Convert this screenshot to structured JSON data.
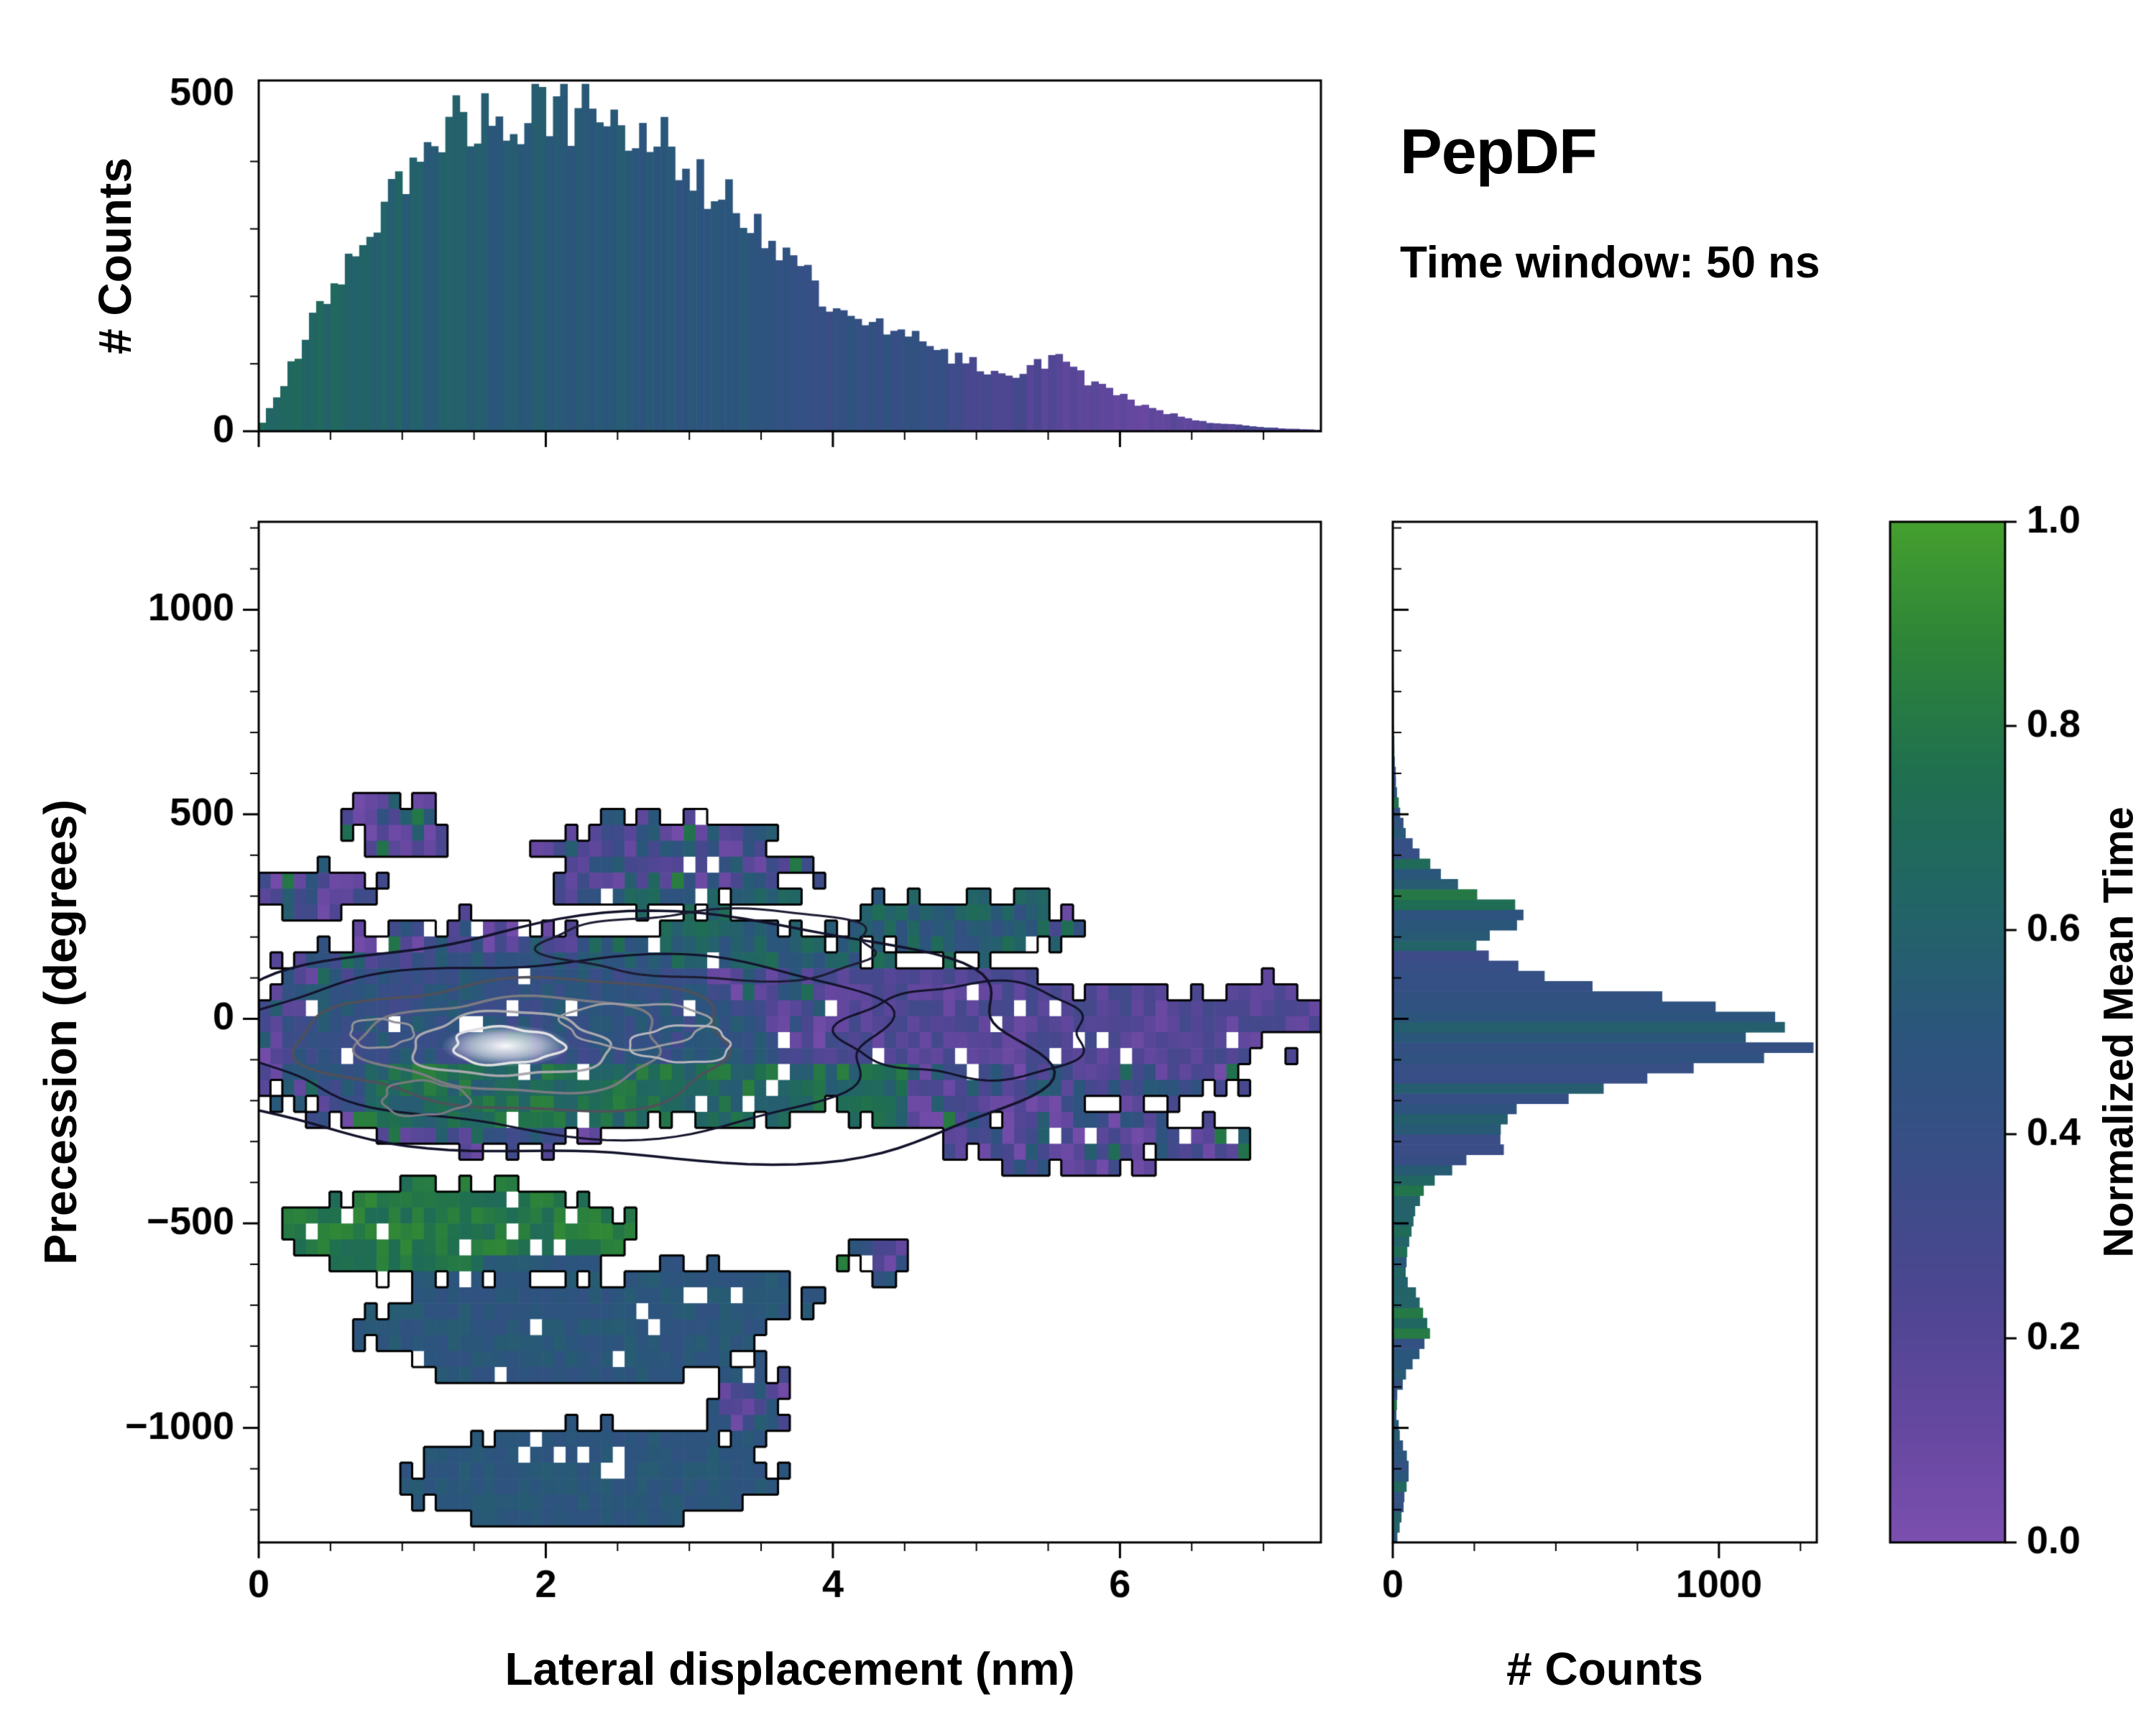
{
  "title": {
    "name": "PepDF",
    "subtitle": "Time window: 50 ns"
  },
  "axes": {
    "top_hist": {
      "ylabel": "# Counts",
      "ylim": [
        0,
        520
      ],
      "yticks": [
        0,
        500
      ],
      "yminor": 100,
      "xminor": 0.5
    },
    "main": {
      "xlabel": "Lateral displacement (nm)",
      "ylabel": "Precession (degrees)",
      "xlim": [
        0,
        7.4
      ],
      "ylim": [
        -1280,
        1215
      ],
      "xticks": [
        0,
        2,
        4,
        6
      ],
      "xminor": 0.5,
      "yticks": [
        -1000,
        -500,
        0,
        500,
        1000
      ],
      "yminor": 100
    },
    "right_hist": {
      "xlabel": "# Counts",
      "xlim": [
        0,
        1300
      ],
      "xticks": [
        0,
        1000
      ],
      "xminor": 250,
      "ymajor": 500,
      "yminor": 100
    },
    "colorbar": {
      "label": "Normalized Mean Time",
      "ticks": [
        0,
        0.2,
        0.4,
        0.6,
        0.8,
        1.0
      ],
      "lim": [
        0,
        1
      ]
    }
  },
  "colormap": [
    [
      0,
      "#7b4fae"
    ],
    [
      0.12,
      "#64479f"
    ],
    [
      0.25,
      "#4b4690"
    ],
    [
      0.38,
      "#384e86"
    ],
    [
      0.5,
      "#2b557c"
    ],
    [
      0.62,
      "#226467"
    ],
    [
      0.75,
      "#1f6f50"
    ],
    [
      0.88,
      "#2d8438"
    ],
    [
      1,
      "#45a02f"
    ]
  ],
  "render": {
    "seed": 20240617
  },
  "chart_data": [
    {
      "panel": "top",
      "type": "bar",
      "title": "Distribution of lateral displacement, colored by normalized mean time",
      "bins": 148,
      "xlim": [
        0,
        7.4
      ],
      "value_noise": 0.22,
      "color_noise": 0.1,
      "envelope": [
        [
          0,
          4
        ],
        [
          0.1,
          40
        ],
        [
          0.2,
          85
        ],
        [
          0.3,
          125
        ],
        [
          0.35,
          150
        ],
        [
          0.45,
          185
        ],
        [
          0.55,
          215
        ],
        [
          0.65,
          245
        ],
        [
          0.75,
          280
        ],
        [
          0.85,
          320
        ],
        [
          0.95,
          355
        ],
        [
          1.05,
          385
        ],
        [
          1.15,
          420
        ],
        [
          1.25,
          445
        ],
        [
          1.35,
          460
        ],
        [
          1.45,
          440
        ],
        [
          1.55,
          455
        ],
        [
          1.65,
          470
        ],
        [
          1.75,
          455
        ],
        [
          1.85,
          480
        ],
        [
          1.95,
          465
        ],
        [
          2.05,
          480
        ],
        [
          2.15,
          470
        ],
        [
          2.25,
          488
        ],
        [
          2.35,
          478
        ],
        [
          2.45,
          485
        ],
        [
          2.55,
          470
        ],
        [
          2.65,
          450
        ],
        [
          2.75,
          435
        ],
        [
          2.85,
          415
        ],
        [
          2.95,
          395
        ],
        [
          3.05,
          375
        ],
        [
          3.15,
          355
        ],
        [
          3.25,
          345
        ],
        [
          3.35,
          335
        ],
        [
          3.45,
          315
        ],
        [
          3.55,
          285
        ],
        [
          3.65,
          265
        ],
        [
          3.75,
          245
        ],
        [
          3.85,
          215
        ],
        [
          3.95,
          185
        ],
        [
          4.05,
          170
        ],
        [
          4.15,
          162
        ],
        [
          4.25,
          168
        ],
        [
          4.35,
          162
        ],
        [
          4.45,
          152
        ],
        [
          4.55,
          138
        ],
        [
          4.65,
          125
        ],
        [
          4.75,
          115
        ],
        [
          4.85,
          108
        ],
        [
          4.95,
          102
        ],
        [
          5.1,
          92
        ],
        [
          5.3,
          88
        ],
        [
          5.45,
          100
        ],
        [
          5.55,
          108
        ],
        [
          5.65,
          95
        ],
        [
          5.8,
          72
        ],
        [
          5.95,
          58
        ],
        [
          6.1,
          42
        ],
        [
          6.25,
          32
        ],
        [
          6.4,
          24
        ],
        [
          6.55,
          16
        ],
        [
          6.7,
          11
        ],
        [
          6.9,
          8
        ],
        [
          7.1,
          5
        ],
        [
          7.25,
          3
        ],
        [
          7.4,
          2
        ]
      ],
      "color_envelope": [
        [
          0,
          0.68
        ],
        [
          0.6,
          0.62
        ],
        [
          1.2,
          0.57
        ],
        [
          1.8,
          0.54
        ],
        [
          2.4,
          0.52
        ],
        [
          3.0,
          0.5
        ],
        [
          3.6,
          0.47
        ],
        [
          3.95,
          0.4
        ],
        [
          4.2,
          0.44
        ],
        [
          4.6,
          0.4
        ],
        [
          5.0,
          0.3
        ],
        [
          5.4,
          0.22
        ],
        [
          5.8,
          0.16
        ],
        [
          6.2,
          0.14
        ],
        [
          6.6,
          0.18
        ],
        [
          7.0,
          0.28
        ],
        [
          7.4,
          0.22
        ]
      ]
    },
    {
      "panel": "main",
      "type": "heatmap",
      "title": "2D histogram of precession vs lateral displacement, colored by normalized mean time, with density contours",
      "grid": {
        "nx": 90,
        "ny": 64
      },
      "fill_threshold": 0.27,
      "threshold_noise": 0.25,
      "white_hole_fraction": 0.045,
      "fill_blobs": [
        {
          "cx": 1.6,
          "cy": -40,
          "rx": 2.05,
          "ry": 330,
          "d": 1.0
        },
        {
          "cx": 3.2,
          "cy": -10,
          "rx": 1.7,
          "ry": 300,
          "d": 0.92
        },
        {
          "cx": 4.8,
          "cy": -70,
          "rx": 1.5,
          "ry": 255,
          "d": 0.8
        },
        {
          "cx": 6.1,
          "cy": -60,
          "rx": 1.3,
          "ry": 185,
          "d": 0.66
        },
        {
          "cx": 6.95,
          "cy": 20,
          "rx": 0.6,
          "ry": 110,
          "d": 0.52
        },
        {
          "cx": 2.9,
          "cy": 380,
          "rx": 1.35,
          "ry": 165,
          "d": 0.55
        },
        {
          "cx": 0.95,
          "cy": 470,
          "rx": 0.55,
          "ry": 115,
          "d": 0.45
        },
        {
          "cx": 0.4,
          "cy": 300,
          "rx": 0.8,
          "ry": 95,
          "d": 0.5
        },
        {
          "cx": 4.9,
          "cy": 230,
          "rx": 1.2,
          "ry": 110,
          "d": 0.5
        },
        {
          "cx": 1.4,
          "cy": -520,
          "rx": 1.45,
          "ry": 150,
          "d": 0.85
        },
        {
          "cx": 2.1,
          "cy": -765,
          "rx": 1.6,
          "ry": 155,
          "d": 0.9
        },
        {
          "cx": 3.1,
          "cy": -690,
          "rx": 0.95,
          "ry": 120,
          "d": 0.6
        },
        {
          "cx": 2.3,
          "cy": -1120,
          "rx": 1.55,
          "ry": 150,
          "d": 0.88
        },
        {
          "cx": 3.4,
          "cy": -940,
          "rx": 0.45,
          "ry": 230,
          "d": 0.45
        },
        {
          "cx": 5.6,
          "cy": -295,
          "rx": 1.15,
          "ry": 115,
          "d": 0.55
        },
        {
          "cx": 6.5,
          "cy": -300,
          "rx": 0.7,
          "ry": 80,
          "d": 0.45
        },
        {
          "cx": 4.3,
          "cy": -585,
          "rx": 0.35,
          "ry": 80,
          "d": 0.4
        }
      ],
      "color_rules": [
        {
          "shape": "ellipse",
          "cx": 2.1,
          "cy": -765,
          "rx": 1.75,
          "ry": 175,
          "t": 0.5,
          "spread": 0.06
        },
        {
          "shape": "ellipse",
          "cx": 3.1,
          "cy": -690,
          "rx": 1.05,
          "ry": 135,
          "t": 0.5,
          "spread": 0.06
        },
        {
          "shape": "ellipse",
          "cx": 2.3,
          "cy": -1120,
          "rx": 1.7,
          "ry": 165,
          "t": 0.5,
          "spread": 0.05
        },
        {
          "shape": "ellipse",
          "cx": 1.4,
          "cy": -520,
          "rx": 1.5,
          "ry": 160,
          "t": 0.8,
          "spread": 0.1
        },
        {
          "shape": "rect",
          "x0": 0.7,
          "x1": 4.5,
          "y0": -260,
          "y1": -125,
          "t": 0.7,
          "spread": 0.16
        },
        {
          "shape": "rect",
          "x0": 2.2,
          "x1": 5.5,
          "y0": 140,
          "y1": 330,
          "t": 0.58,
          "spread": 0.15
        },
        {
          "shape": "ellipse",
          "cx": 1.9,
          "cy": -60,
          "rx": 1.7,
          "ry": 230,
          "t": 0.44,
          "spread": 0.13
        },
        {
          "shape": "rect",
          "x0": 4.0,
          "x1": 7.4,
          "y0": -120,
          "y1": 120,
          "t": 0.2,
          "spread": 0.12
        }
      ],
      "default_color": {
        "t": 0.2,
        "spread": 0.16,
        "blue_chance": 0.26,
        "green_chance": 0.07
      },
      "contours": {
        "dark": [
          {
            "cx": 2.5,
            "cy": -60,
            "rx": 3.05,
            "ry": 295,
            "color": "#13132b",
            "lw": 3.5
          },
          {
            "cx": 2.2,
            "cy": -60,
            "rx": 2.25,
            "ry": 215,
            "color": "#13132b",
            "lw": 3
          },
          {
            "cx": 4.95,
            "cy": -30,
            "rx": 0.85,
            "ry": 115,
            "color": "#13132b",
            "lw": 3
          },
          {
            "cx": 3.2,
            "cy": 180,
            "rx": 1.15,
            "ry": 85,
            "color": "#1c1c33",
            "lw": 3
          }
        ],
        "gray": [
          {
            "cx": 1.85,
            "cy": -62,
            "rx": 1.5,
            "ry": 160,
            "color": "#50505a",
            "lw": 3.5
          },
          {
            "cx": 1.8,
            "cy": -62,
            "rx": 1.05,
            "ry": 115,
            "color": "#7b7b83",
            "lw": 3.5
          },
          {
            "cx": 1.75,
            "cy": -64,
            "rx": 0.68,
            "ry": 78,
            "color": "#a8a8ae",
            "lw": 3.5
          },
          {
            "cx": 1.72,
            "cy": -66,
            "rx": 0.38,
            "ry": 45,
            "color": "#dcdce0",
            "lw": 3.5
          },
          {
            "cx": 0.85,
            "cy": -35,
            "rx": 0.22,
            "ry": 35,
            "color": "#93939b",
            "lw": 3
          },
          {
            "cx": 1.15,
            "cy": -195,
            "rx": 0.3,
            "ry": 42,
            "color": "#7a7a82",
            "lw": 3
          },
          {
            "cx": 2.62,
            "cy": -15,
            "rx": 0.5,
            "ry": 55,
            "color": "#9c9ca3",
            "lw": 3
          },
          {
            "cx": 2.95,
            "cy": -62,
            "rx": 0.35,
            "ry": 45,
            "color": "#b7b7bd",
            "lw": 3
          }
        ],
        "glow": {
          "cx": 1.72,
          "cy": -66,
          "rx": 0.45,
          "ry": 52
        }
      }
    },
    {
      "panel": "right",
      "type": "bar-horizontal",
      "title": "Distribution of precession, colored by normalized mean time",
      "bins": 100,
      "ylim": [
        -1280,
        1215
      ],
      "value_noise": 0.2,
      "color_noise": 0.2,
      "green_sliver_chance": 0.08,
      "envelope": [
        [
          -1275,
          12
        ],
        [
          -1240,
          22
        ],
        [
          -1200,
          30
        ],
        [
          -1160,
          38
        ],
        [
          -1120,
          52
        ],
        [
          -1080,
          45
        ],
        [
          -1040,
          30
        ],
        [
          -1000,
          18
        ],
        [
          -960,
          10
        ],
        [
          -920,
          14
        ],
        [
          -880,
          35
        ],
        [
          -840,
          60
        ],
        [
          -800,
          92
        ],
        [
          -760,
          108
        ],
        [
          -720,
          100
        ],
        [
          -680,
          72
        ],
        [
          -640,
          48
        ],
        [
          -600,
          38
        ],
        [
          -560,
          45
        ],
        [
          -520,
          55
        ],
        [
          -480,
          70
        ],
        [
          -440,
          85
        ],
        [
          -400,
          115
        ],
        [
          -360,
          195
        ],
        [
          -330,
          290
        ],
        [
          -300,
          370
        ],
        [
          -270,
          350
        ],
        [
          -240,
          380
        ],
        [
          -210,
          420
        ],
        [
          -180,
          560
        ],
        [
          -150,
          760
        ],
        [
          -120,
          980
        ],
        [
          -90,
          1150
        ],
        [
          -60,
          1240
        ],
        [
          -40,
          1190
        ],
        [
          -20,
          1230
        ],
        [
          0,
          1140
        ],
        [
          20,
          1050
        ],
        [
          40,
          900
        ],
        [
          60,
          760
        ],
        [
          80,
          640
        ],
        [
          100,
          520
        ],
        [
          120,
          430
        ],
        [
          140,
          360
        ],
        [
          160,
          300
        ],
        [
          180,
          280
        ],
        [
          200,
          300
        ],
        [
          220,
          340
        ],
        [
          240,
          390
        ],
        [
          260,
          400
        ],
        [
          280,
          360
        ],
        [
          300,
          300
        ],
        [
          320,
          240
        ],
        [
          340,
          185
        ],
        [
          360,
          140
        ],
        [
          380,
          105
        ],
        [
          400,
          80
        ],
        [
          430,
          58
        ],
        [
          460,
          40
        ],
        [
          500,
          26
        ],
        [
          540,
          16
        ],
        [
          580,
          10
        ],
        [
          640,
          6
        ],
        [
          700,
          4
        ],
        [
          800,
          3
        ],
        [
          900,
          2
        ],
        [
          1000,
          2
        ],
        [
          1100,
          1
        ],
        [
          1215,
          1
        ]
      ],
      "color_envelope": [
        [
          -1275,
          0.5
        ],
        [
          -1100,
          0.52
        ],
        [
          -900,
          0.48
        ],
        [
          -760,
          0.5
        ],
        [
          -600,
          0.62
        ],
        [
          -500,
          0.7
        ],
        [
          -430,
          0.66
        ],
        [
          -350,
          0.45
        ],
        [
          -300,
          0.42
        ],
        [
          -250,
          0.5
        ],
        [
          -150,
          0.48
        ],
        [
          -60,
          0.5
        ],
        [
          0,
          0.52
        ],
        [
          80,
          0.48
        ],
        [
          160,
          0.42
        ],
        [
          240,
          0.5
        ],
        [
          300,
          0.55
        ],
        [
          400,
          0.45
        ],
        [
          600,
          0.5
        ],
        [
          1215,
          0.5
        ]
      ]
    }
  ]
}
